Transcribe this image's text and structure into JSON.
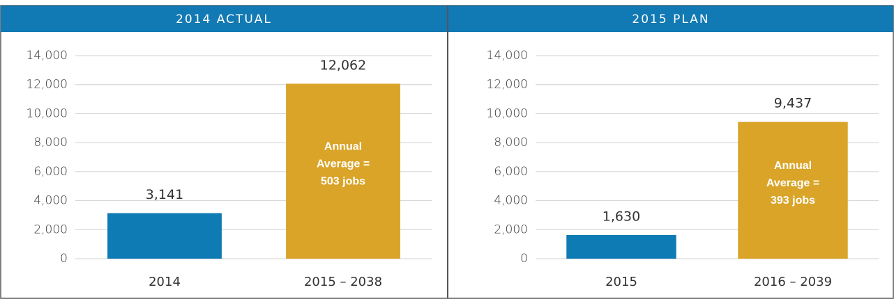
{
  "chart_data": [
    {
      "type": "bar",
      "title": "2014 ACTUAL",
      "categories": [
        "2014",
        "2015 – 2038"
      ],
      "values": [
        3141,
        12062
      ],
      "value_labels": [
        "3,141",
        "12,062"
      ],
      "colors": [
        "#0f7bb4",
        "#d9a427"
      ],
      "annotation": [
        "Annual",
        "Average =",
        "503 jobs"
      ],
      "ylim": [
        0,
        14000
      ],
      "yticks": [
        0,
        {
          "value": 2000,
          "label": "2,000"
        },
        {
          "value": 4000,
          "label": "4,000"
        },
        {
          "value": 6000,
          "label": "6,000"
        },
        {
          "value": 8000,
          "label": "8,000"
        },
        {
          "value": 10000,
          "label": "10,000"
        },
        {
          "value": 12000,
          "label": "12,000"
        },
        {
          "value": 14000,
          "label": "14,000"
        }
      ],
      "grid": true
    },
    {
      "type": "bar",
      "title": "2015 PLAN",
      "categories": [
        "2015",
        "2016 – 2039"
      ],
      "values": [
        1630,
        9437
      ],
      "value_labels": [
        "1,630",
        "9,437"
      ],
      "colors": [
        "#0f7bb4",
        "#d9a427"
      ],
      "annotation": [
        "Annual",
        "Average =",
        "393 jobs"
      ],
      "ylim": [
        0,
        14000
      ],
      "yticks": [
        0,
        {
          "value": 2000,
          "label": "2,000"
        },
        {
          "value": 4000,
          "label": "4,000"
        },
        {
          "value": 6000,
          "label": "6,000"
        },
        {
          "value": 8000,
          "label": "8,000"
        },
        {
          "value": 10000,
          "label": "10,000"
        },
        {
          "value": 12000,
          "label": "12,000"
        },
        {
          "value": 14000,
          "label": "14,000"
        }
      ],
      "grid": true
    }
  ]
}
